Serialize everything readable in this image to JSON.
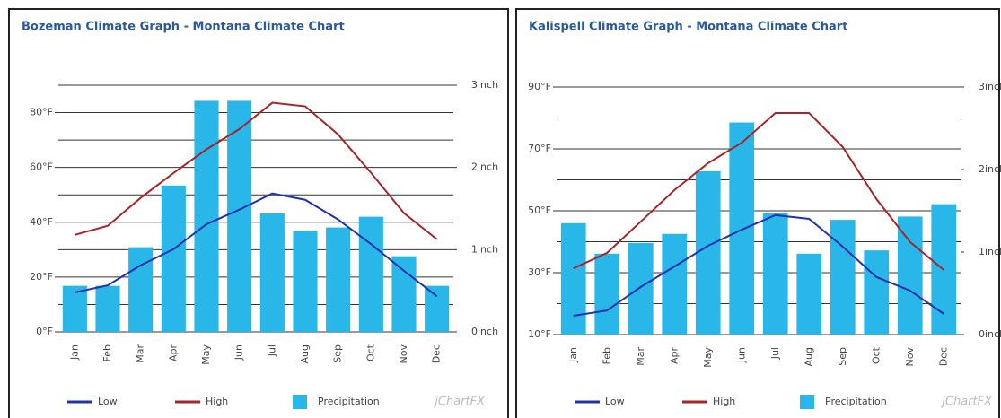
{
  "chart_data": [
    {
      "type": "combo",
      "title": "Bozeman Climate Graph - Montana Climate Chart",
      "watermark": "jChartFX",
      "categories": [
        "Jan",
        "Feb",
        "Mar",
        "Apr",
        "May",
        "Jun",
        "Jul",
        "Aug",
        "Sep",
        "Oct",
        "Nov",
        "Dec"
      ],
      "ylim": [
        0,
        90
      ],
      "yticks": [
        {
          "value": 0,
          "label": "0°F"
        },
        {
          "value": 20,
          "label": "20°F"
        },
        {
          "value": 40,
          "label": "40°F"
        },
        {
          "value": 60,
          "label": "60°F"
        },
        {
          "value": 80,
          "label": "80°F"
        }
      ],
      "grid_yticks": [
        0,
        10,
        20,
        30,
        40,
        50,
        60,
        70,
        80,
        90
      ],
      "y2lim": [
        0,
        3
      ],
      "y2ticks": [
        {
          "value": 0,
          "label": "0inch"
        },
        {
          "value": 1,
          "label": "1inch"
        },
        {
          "value": 2,
          "label": "2inch"
        },
        {
          "value": 3,
          "label": "3inch"
        }
      ],
      "series": [
        {
          "name": "Precipitation",
          "type": "bar",
          "axis": "y2",
          "color": "#29b6e8",
          "values": [
            0.56,
            0.56,
            1.03,
            1.78,
            2.81,
            2.81,
            1.44,
            1.23,
            1.27,
            1.4,
            0.92,
            0.56
          ]
        },
        {
          "name": "Low",
          "type": "line",
          "color": "#2233aa",
          "values": [
            14.4,
            17,
            24.3,
            30.2,
            39.3,
            44.6,
            50.5,
            48.2,
            41,
            32,
            22.3,
            13
          ]
        },
        {
          "name": "High",
          "type": "line",
          "color": "#a3262a",
          "values": [
            35.4,
            38.7,
            48.9,
            58,
            66.6,
            74,
            83.6,
            82.3,
            72,
            58,
            43.3,
            33.8
          ]
        }
      ]
    },
    {
      "type": "combo",
      "title": "Kalispell Climate Graph - Montana Climate Chart",
      "watermark": "jChartFX",
      "categories": [
        "Jan",
        "Feb",
        "Mar",
        "Apr",
        "May",
        "Jun",
        "Jul",
        "Aug",
        "Sep",
        "Oct",
        "Nov",
        "Dec"
      ],
      "ylim": [
        10,
        90
      ],
      "yticks": [
        {
          "value": 10,
          "label": "10°F"
        },
        {
          "value": 30,
          "label": "30°F"
        },
        {
          "value": 50,
          "label": "50°F"
        },
        {
          "value": 70,
          "label": "70°F"
        },
        {
          "value": 90,
          "label": "90°F"
        }
      ],
      "grid_yticks": [
        10,
        20,
        30,
        40,
        50,
        60,
        70,
        80,
        90
      ],
      "y2lim": [
        0,
        3
      ],
      "y2ticks": [
        {
          "value": 0,
          "label": "0inch"
        },
        {
          "value": 1,
          "label": "1inch"
        },
        {
          "value": 2,
          "label": "2inch"
        },
        {
          "value": 3,
          "label": "3inch"
        }
      ],
      "series": [
        {
          "name": "Precipitation",
          "type": "bar",
          "axis": "y2",
          "color": "#29b6e8",
          "values": [
            1.35,
            0.98,
            1.11,
            1.22,
            1.98,
            2.57,
            1.47,
            0.98,
            1.39,
            1.02,
            1.43,
            1.58
          ]
        },
        {
          "name": "Low",
          "type": "line",
          "color": "#2233aa",
          "values": [
            16.1,
            17.8,
            25.4,
            32,
            38.7,
            43.9,
            48.6,
            47.4,
            38.4,
            28.6,
            24.2,
            16.7
          ]
        },
        {
          "name": "High",
          "type": "line",
          "color": "#a3262a",
          "values": [
            31.4,
            36.4,
            46.5,
            56.7,
            65.4,
            72,
            81.6,
            81.6,
            70.6,
            53.8,
            39.9,
            30.9
          ]
        }
      ]
    }
  ]
}
